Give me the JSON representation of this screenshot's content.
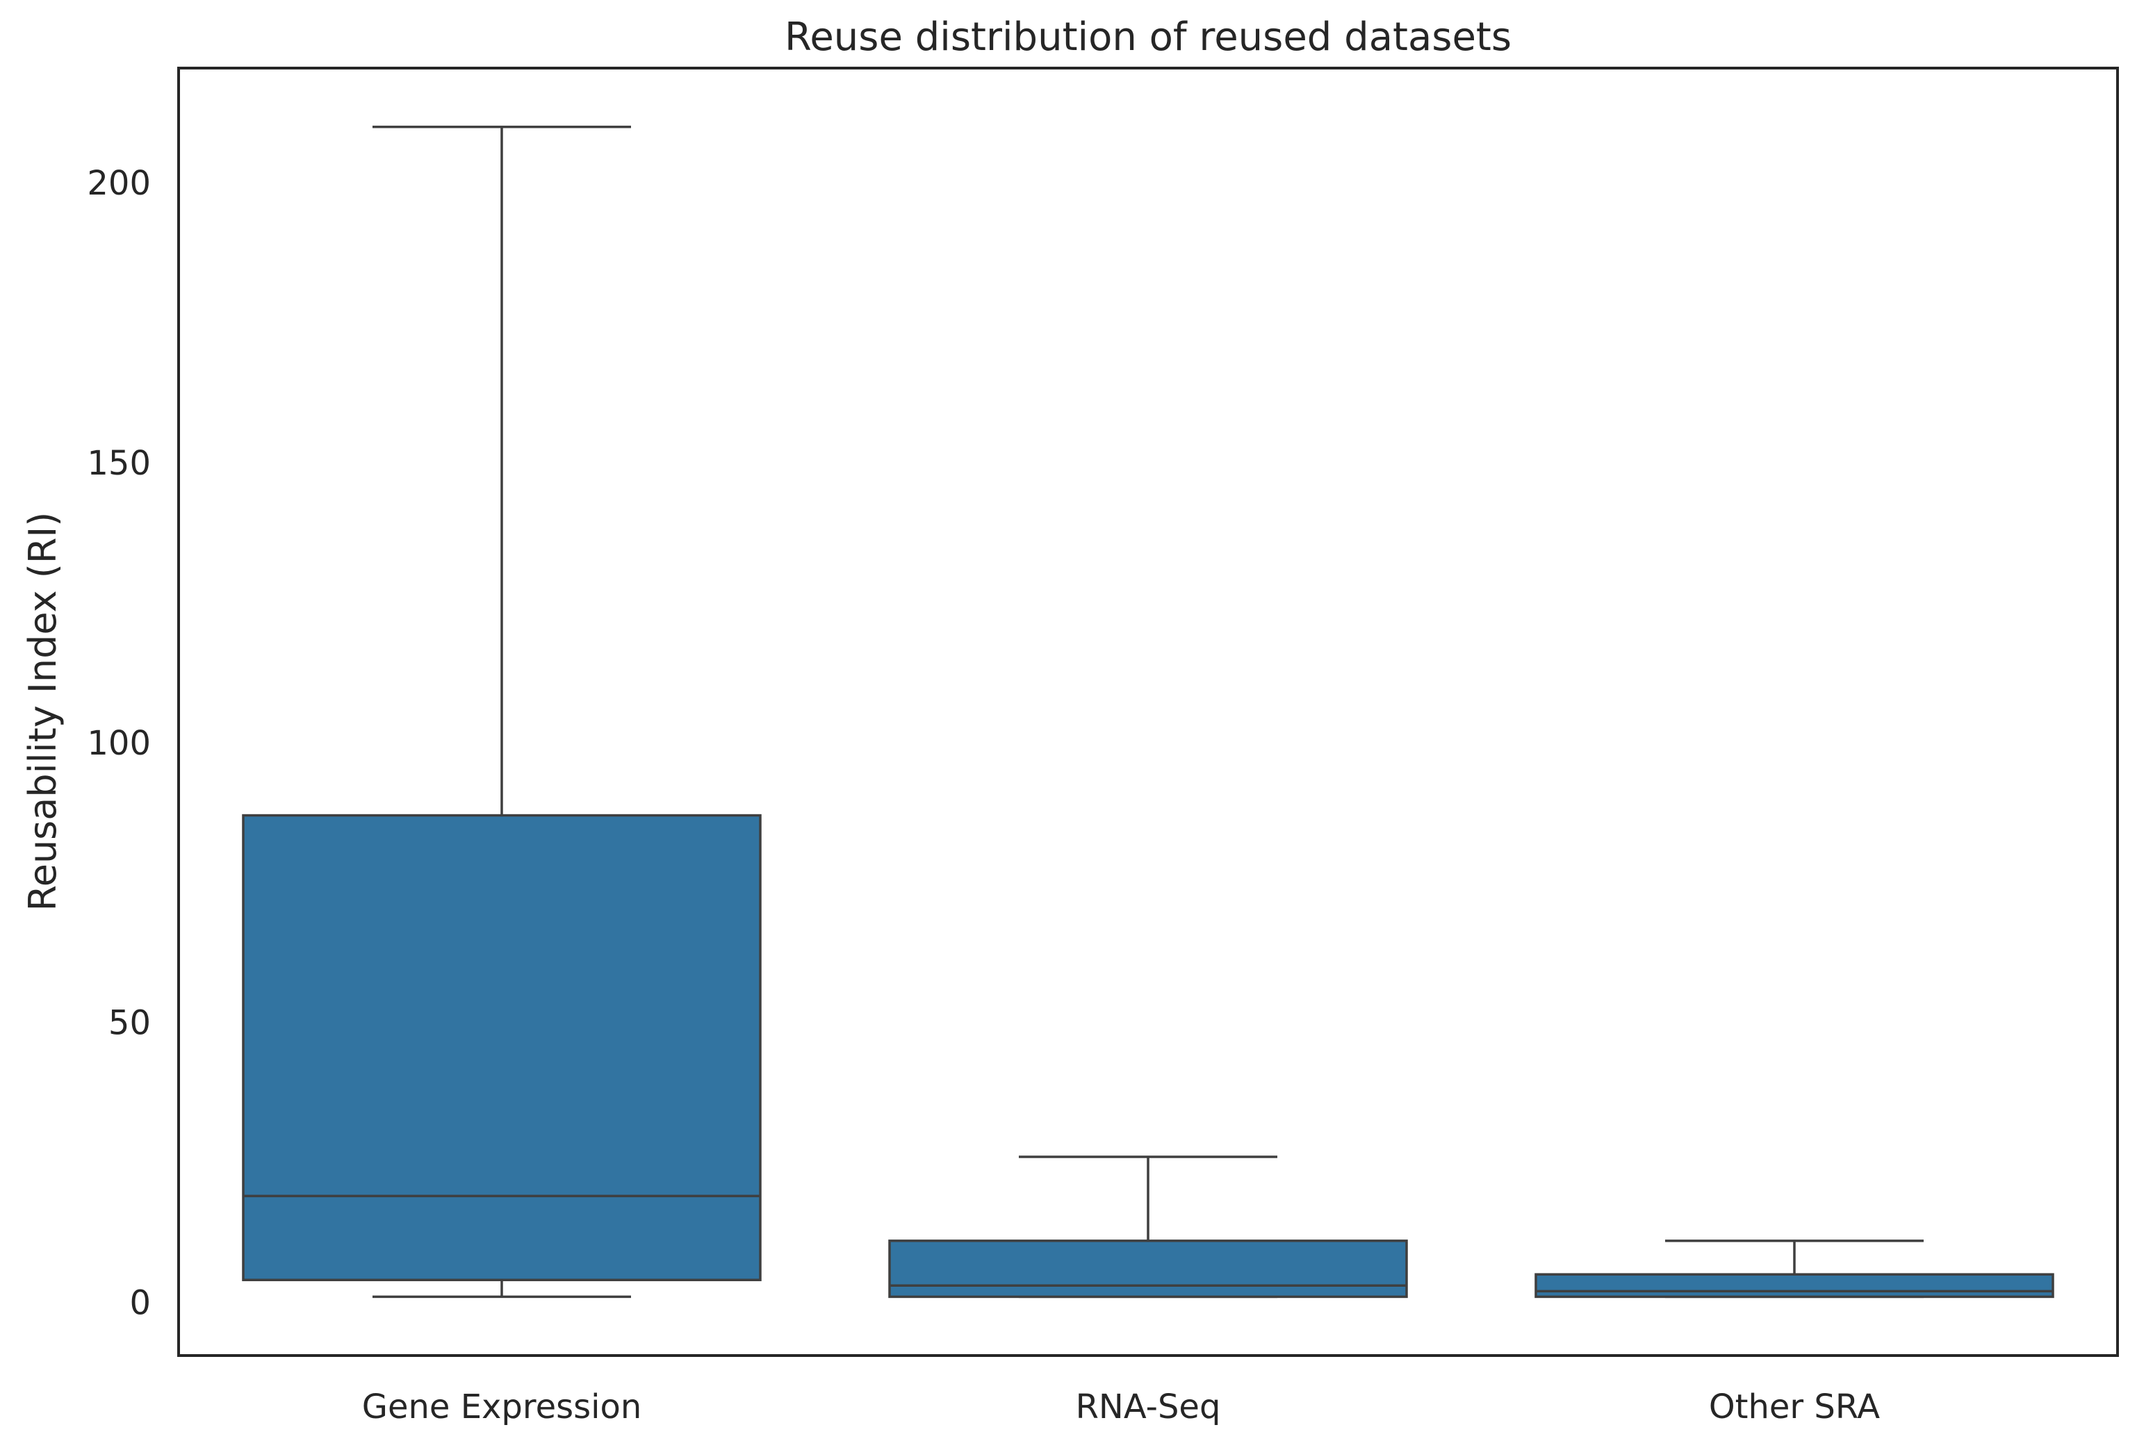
{
  "chart_data": {
    "type": "box",
    "title": "Reuse distribution of reused datasets",
    "xlabel": "",
    "ylabel": "Reusability Index (RI)",
    "ylim": [
      -9.5,
      220.5
    ],
    "yticks": [
      0,
      50,
      100,
      150,
      200
    ],
    "categories": [
      "Gene Expression",
      "RNA-Seq",
      "Other SRA"
    ],
    "boxes": [
      {
        "category": "Gene Expression",
        "whisker_low": 1,
        "q1": 4,
        "median": 19,
        "q3": 87,
        "whisker_high": 210
      },
      {
        "category": "RNA-Seq",
        "whisker_low": 1,
        "q1": 1,
        "median": 3,
        "q3": 11,
        "whisker_high": 26
      },
      {
        "category": "Other SRA",
        "whisker_low": 1,
        "q1": 1,
        "median": 2,
        "q3": 5,
        "whisker_high": 11
      }
    ],
    "box_color": "#3274a1",
    "line_color": "#3f3f3f",
    "frame_color": "#262626",
    "grid": false,
    "legend": "none"
  }
}
